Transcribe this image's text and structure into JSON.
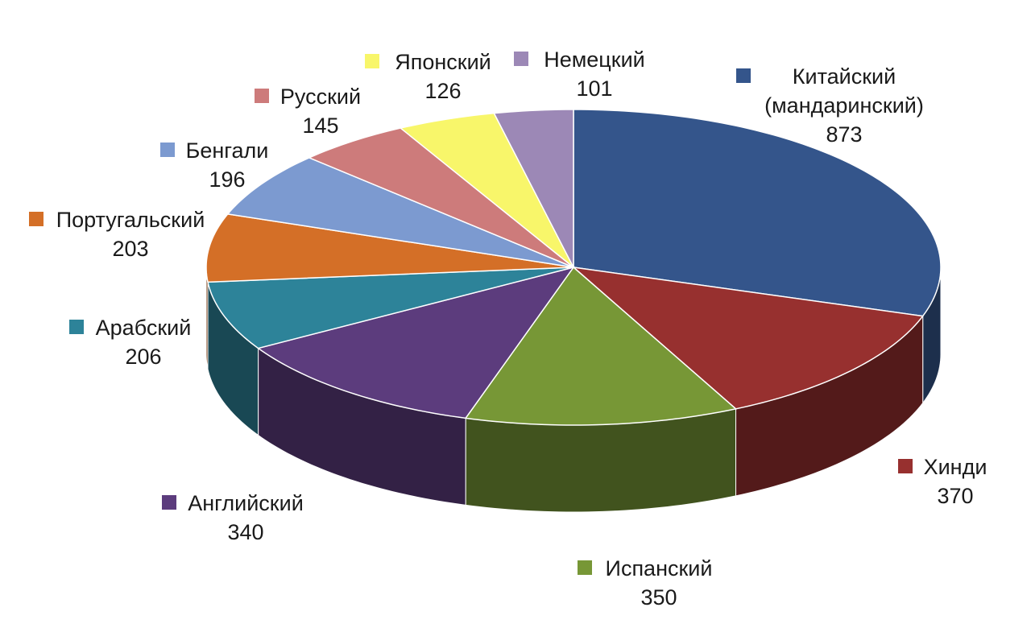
{
  "chart_data": {
    "type": "pie",
    "style": "3d",
    "legend": "labels-around",
    "slices": [
      {
        "label": "Китайский (мандаринский)",
        "label_lines": [
          "Китайский",
          "(мандаринский)"
        ],
        "value": 873,
        "color": "#34558b"
      },
      {
        "label": "Хинди",
        "label_lines": [
          "Хинди"
        ],
        "value": 370,
        "color": "#97302f"
      },
      {
        "label": "Испанский",
        "label_lines": [
          "Испанский"
        ],
        "value": 350,
        "color": "#779736"
      },
      {
        "label": "Английский",
        "label_lines": [
          "Английский"
        ],
        "value": 340,
        "color": "#5c3c7d"
      },
      {
        "label": "Арабский",
        "label_lines": [
          "Арабский"
        ],
        "value": 206,
        "color": "#2d8399"
      },
      {
        "label": "Португальский",
        "label_lines": [
          "Португальский"
        ],
        "value": 203,
        "color": "#d46f27"
      },
      {
        "label": "Бенгали",
        "label_lines": [
          "Бенгали"
        ],
        "value": 196,
        "color": "#7c9ad0"
      },
      {
        "label": "Русский",
        "label_lines": [
          "Русский"
        ],
        "value": 145,
        "color": "#cd7b7b"
      },
      {
        "label": "Японский",
        "label_lines": [
          "Японский"
        ],
        "value": 126,
        "color": "#f8f66a"
      },
      {
        "label": "Немецкий",
        "label_lines": [
          "Немецкий"
        ],
        "value": 101,
        "color": "#9c88b6"
      }
    ]
  }
}
